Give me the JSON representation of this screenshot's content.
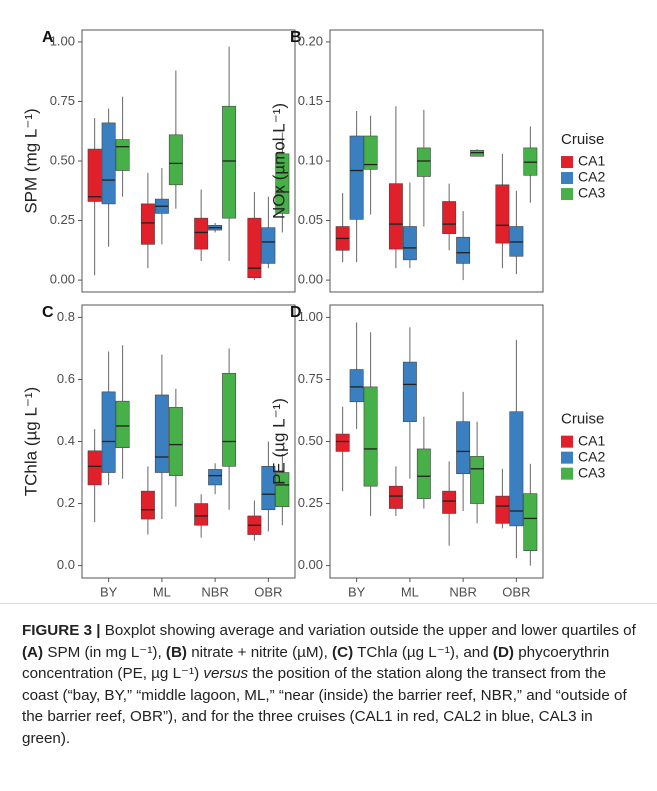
{
  "chart_data": [
    {
      "type": "box",
      "panel": "A",
      "ylabel": "SPM (mg L⁻¹)",
      "ylim": [
        -0.05,
        1.05
      ],
      "yticks": [
        {
          "value": 0,
          "label": "0.00"
        },
        0.25,
        {
          "value": 0.5,
          "label": "0.50"
        },
        0.75,
        {
          "value": 1,
          "label": "1.00"
        }
      ],
      "series": [
        {
          "color": "#e0202a",
          "min": [
            0.02,
            0.05,
            0.08,
            0.0
          ],
          "q1": [
            0.33,
            0.15,
            0.13,
            0.01
          ],
          "median": [
            0.35,
            0.24,
            0.2,
            0.05
          ],
          "q3": [
            0.55,
            0.32,
            0.26,
            0.26
          ],
          "max": [
            0.68,
            0.45,
            0.38,
            0.37
          ]
        },
        {
          "color": "#3a7fc0",
          "min": [
            0.14,
            0.15,
            0.2,
            0.05
          ],
          "q1": [
            0.32,
            0.28,
            0.21,
            0.07
          ],
          "median": [
            0.42,
            0.31,
            0.22,
            0.16
          ],
          "q3": [
            0.66,
            0.34,
            0.23,
            0.22
          ],
          "max": [
            0.72,
            0.47,
            0.24,
            0.35
          ]
        },
        {
          "color": "#47b049",
          "min": [
            0.35,
            0.3,
            0.08,
            0.2
          ],
          "q1": [
            0.46,
            0.4,
            0.26,
            0.28
          ],
          "median": [
            0.56,
            0.49,
            0.5,
            0.37
          ],
          "q3": [
            0.59,
            0.61,
            0.73,
            0.53
          ],
          "max": [
            0.77,
            0.88,
            0.98,
            0.62
          ]
        }
      ]
    },
    {
      "type": "box",
      "panel": "B",
      "ylabel": "NOx (µmol L⁻¹)",
      "ylim": [
        -0.01,
        0.21
      ],
      "yticks": [
        {
          "value": 0,
          "label": "0.00"
        },
        0.05,
        {
          "value": 0.1,
          "label": "0.10"
        },
        0.15,
        {
          "value": 0.2,
          "label": "0.20"
        }
      ],
      "legend_title": "Cruise",
      "series": [
        {
          "name": "CA1",
          "color": "#e0202a",
          "min": [
            0.015,
            0.01,
            0.025,
            0.01
          ],
          "q1": [
            0.025,
            0.026,
            0.039,
            0.031
          ],
          "median": [
            0.035,
            0.047,
            0.047,
            0.046
          ],
          "q3": [
            0.045,
            0.081,
            0.066,
            0.08
          ],
          "max": [
            0.073,
            0.146,
            0.081,
            0.106
          ]
        },
        {
          "name": "CA2",
          "color": "#3a7fc0",
          "min": [
            0.015,
            0.01,
            0.0,
            0.005
          ],
          "q1": [
            0.051,
            0.017,
            0.014,
            0.02
          ],
          "median": [
            0.092,
            0.027,
            0.023,
            0.032
          ],
          "q3": [
            0.121,
            0.045,
            0.036,
            0.045
          ],
          "max": [
            0.142,
            0.082,
            0.058,
            0.075
          ]
        },
        {
          "name": "CA3",
          "color": "#47b049",
          "min": [
            0.055,
            0.045,
            0.104,
            0.065
          ],
          "q1": [
            0.093,
            0.087,
            0.104,
            0.088
          ],
          "median": [
            0.097,
            0.1,
            0.107,
            0.099
          ],
          "q3": [
            0.121,
            0.111,
            0.109,
            0.111
          ],
          "max": [
            0.138,
            0.143,
            0.11,
            0.129
          ]
        }
      ]
    },
    {
      "type": "box",
      "panel": "C",
      "ylabel": "TChla (µg L⁻¹)",
      "ylim": [
        -0.04,
        0.84
      ],
      "yticks": [
        {
          "value": 0,
          "label": "0.0"
        },
        0.2,
        0.4,
        0.6,
        0.8
      ],
      "categories": [
        "BY",
        "ML",
        "NBR",
        "OBR"
      ],
      "series": [
        {
          "color": "#e0202a",
          "min": [
            0.14,
            0.1,
            0.09,
            0.08
          ],
          "q1": [
            0.26,
            0.15,
            0.13,
            0.1
          ],
          "median": [
            0.32,
            0.18,
            0.16,
            0.13
          ],
          "q3": [
            0.37,
            0.24,
            0.2,
            0.16
          ],
          "max": [
            0.44,
            0.32,
            0.23,
            0.21
          ]
        },
        {
          "color": "#3a7fc0",
          "min": [
            0.26,
            0.15,
            0.23,
            0.11
          ],
          "q1": [
            0.3,
            0.3,
            0.26,
            0.18
          ],
          "median": [
            0.4,
            0.35,
            0.29,
            0.23
          ],
          "q3": [
            0.56,
            0.55,
            0.31,
            0.32
          ],
          "max": [
            0.69,
            0.68,
            0.33,
            0.4
          ]
        },
        {
          "color": "#47b049",
          "min": [
            0.28,
            0.19,
            0.18,
            0.13
          ],
          "q1": [
            0.38,
            0.29,
            0.32,
            0.19
          ],
          "median": [
            0.45,
            0.39,
            0.4,
            0.26
          ],
          "q3": [
            0.53,
            0.51,
            0.62,
            0.3
          ],
          "max": [
            0.71,
            0.57,
            0.7,
            0.36
          ]
        }
      ]
    },
    {
      "type": "box",
      "panel": "D",
      "ylabel": "PE (µg L⁻¹)",
      "ylim": [
        -0.05,
        1.05
      ],
      "yticks": [
        {
          "value": 0,
          "label": "0.00"
        },
        0.25,
        {
          "value": 0.5,
          "label": "0.50"
        },
        0.75,
        {
          "value": 1,
          "label": "1.00"
        }
      ],
      "categories": [
        "BY",
        "ML",
        "NBR",
        "OBR"
      ],
      "legend_title": "Cruise",
      "series": [
        {
          "name": "CA1",
          "color": "#e0202a",
          "min": [
            0.3,
            0.2,
            0.08,
            0.15
          ],
          "q1": [
            0.46,
            0.23,
            0.21,
            0.17
          ],
          "median": [
            0.5,
            0.28,
            0.26,
            0.24
          ],
          "q3": [
            0.53,
            0.32,
            0.3,
            0.28
          ],
          "max": [
            0.64,
            0.4,
            0.42,
            0.39
          ]
        },
        {
          "name": "CA2",
          "color": "#3a7fc0",
          "min": [
            0.55,
            0.35,
            0.22,
            0.03
          ],
          "q1": [
            0.66,
            0.58,
            0.37,
            0.16
          ],
          "median": [
            0.72,
            0.73,
            0.46,
            0.22
          ],
          "q3": [
            0.79,
            0.82,
            0.58,
            0.62
          ],
          "max": [
            0.98,
            0.96,
            0.7,
            0.91
          ]
        },
        {
          "name": "CA3",
          "color": "#47b049",
          "min": [
            0.2,
            0.23,
            0.17,
            0.0
          ],
          "q1": [
            0.32,
            0.27,
            0.25,
            0.06
          ],
          "median": [
            0.47,
            0.36,
            0.39,
            0.19
          ],
          "q3": [
            0.72,
            0.47,
            0.44,
            0.29
          ],
          "max": [
            0.94,
            0.6,
            0.58,
            0.41
          ]
        }
      ]
    }
  ],
  "caption": {
    "segments": [
      {
        "text": "FIGURE 3 |",
        "style": "bold"
      },
      {
        "text": " Boxplot showing average and variation outside the upper and lower quartiles of "
      },
      {
        "text": "(A)",
        "style": "bold"
      },
      {
        "text": " SPM (in mg L⁻¹), "
      },
      {
        "text": "(B)",
        "style": "bold"
      },
      {
        "text": " nitrate + nitrite (µM), "
      },
      {
        "text": "(C)",
        "style": "bold"
      },
      {
        "text": " TChl"
      },
      {
        "text": "a",
        "style": "italic"
      },
      {
        "text": " (µg L⁻¹), and "
      },
      {
        "text": "(D)",
        "style": "bold"
      },
      {
        "text": " phycoerythrin concentration (PE, µg L⁻¹) "
      },
      {
        "text": "versus",
        "style": "italic"
      },
      {
        "text": " the position of the station along the transect from the coast (“bay, BY,” “middle lagoon, ML,” “near (inside) the barrier reef, NBR,” and “outside of the barrier reef, OBR”), and for the three cruises (CAL1 in red, CAL2 in blue, CAL3 in green)."
      }
    ]
  }
}
